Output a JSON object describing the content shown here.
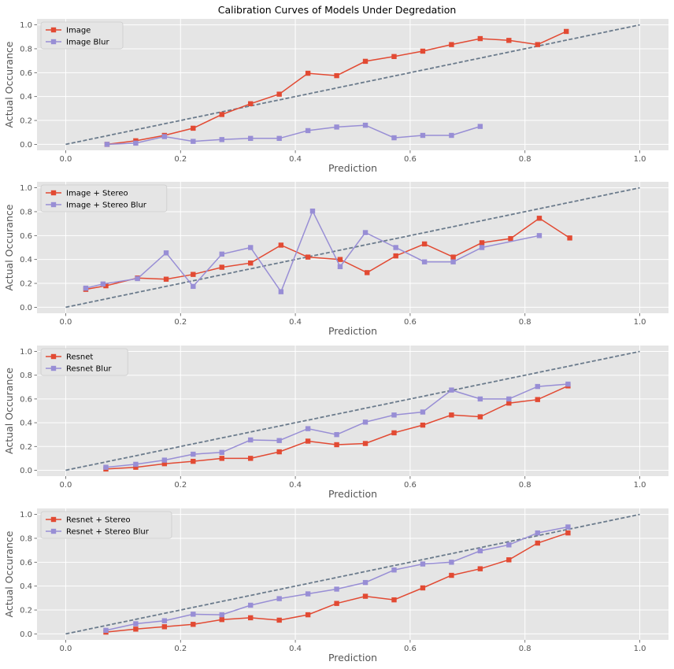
{
  "title": "Calibration Curves of Models Under Degredation",
  "colors": {
    "background": "#E5E5E5",
    "grid": "#FFFFFF",
    "series_a": "#E24A33",
    "series_b": "#988ED5",
    "reference": "#6B7B8C"
  },
  "chart_data": [
    {
      "type": "line",
      "xlabel": "Prediction",
      "ylabel": "Actual Occurance",
      "xlim": [
        -0.05,
        1.05
      ],
      "ylim": [
        -0.05,
        1.05
      ],
      "xticks": [
        "0.0",
        "0.2",
        "0.4",
        "0.6",
        "0.8",
        "1.0"
      ],
      "yticks": [
        "0.0",
        "0.2",
        "0.4",
        "0.6",
        "0.8",
        "1.0"
      ],
      "grid": true,
      "legend_position": "upper-left",
      "reference_line": {
        "x": [
          0,
          1
        ],
        "y": [
          0,
          1
        ]
      },
      "series": [
        {
          "name": "Image",
          "x": [
            0.072,
            0.122,
            0.172,
            0.222,
            0.272,
            0.322,
            0.372,
            0.422,
            0.472,
            0.522,
            0.572,
            0.622,
            0.672,
            0.722,
            0.772,
            0.822,
            0.872
          ],
          "y": [
            0.0,
            0.03,
            0.075,
            0.135,
            0.25,
            0.34,
            0.42,
            0.595,
            0.575,
            0.695,
            0.735,
            0.78,
            0.835,
            0.885,
            0.87,
            0.835,
            0.945
          ]
        },
        {
          "name": "Image Blur",
          "x": [
            0.072,
            0.122,
            0.172,
            0.222,
            0.272,
            0.322,
            0.372,
            0.422,
            0.472,
            0.522,
            0.572,
            0.622,
            0.672,
            0.722
          ],
          "y": [
            0.0,
            0.01,
            0.065,
            0.025,
            0.04,
            0.05,
            0.05,
            0.115,
            0.145,
            0.16,
            0.055,
            0.075,
            0.075,
            0.15
          ]
        }
      ]
    },
    {
      "type": "line",
      "xlabel": "Prediction",
      "ylabel": "Actual Occurance",
      "xlim": [
        -0.05,
        1.05
      ],
      "ylim": [
        -0.05,
        1.05
      ],
      "xticks": [
        "0.0",
        "0.2",
        "0.4",
        "0.6",
        "0.8",
        "1.0"
      ],
      "yticks": [
        "0.0",
        "0.2",
        "0.4",
        "0.6",
        "0.8",
        "1.0"
      ],
      "grid": true,
      "legend_position": "upper-left",
      "reference_line": {
        "x": [
          0,
          1
        ],
        "y": [
          0,
          1
        ]
      },
      "series": [
        {
          "name": "Image + Stereo",
          "x": [
            0.035,
            0.07,
            0.125,
            0.175,
            0.222,
            0.272,
            0.322,
            0.375,
            0.422,
            0.478,
            0.525,
            0.575,
            0.625,
            0.675,
            0.725,
            0.775,
            0.825,
            0.878
          ],
          "y": [
            0.15,
            0.18,
            0.245,
            0.235,
            0.275,
            0.335,
            0.37,
            0.52,
            0.42,
            0.4,
            0.29,
            0.43,
            0.53,
            0.42,
            0.54,
            0.575,
            0.745,
            0.58
          ]
        },
        {
          "name": "Image + Stereo Blur",
          "x": [
            0.035,
            0.065,
            0.125,
            0.175,
            0.222,
            0.272,
            0.322,
            0.375,
            0.43,
            0.478,
            0.522,
            0.575,
            0.625,
            0.675,
            0.725,
            0.825
          ],
          "y": [
            0.16,
            0.195,
            0.24,
            0.455,
            0.175,
            0.445,
            0.5,
            0.13,
            0.805,
            0.34,
            0.625,
            0.5,
            0.38,
            0.38,
            0.5,
            0.6
          ]
        }
      ]
    },
    {
      "type": "line",
      "xlabel": "Prediction",
      "ylabel": "Actual Occurance",
      "xlim": [
        -0.05,
        1.05
      ],
      "ylim": [
        -0.05,
        1.05
      ],
      "xticks": [
        "0.0",
        "0.2",
        "0.4",
        "0.6",
        "0.8",
        "1.0"
      ],
      "yticks": [
        "0.0",
        "0.2",
        "0.4",
        "0.6",
        "0.8",
        "1.0"
      ],
      "grid": true,
      "legend_position": "upper-left",
      "reference_line": {
        "x": [
          0,
          1
        ],
        "y": [
          0,
          1
        ]
      },
      "series": [
        {
          "name": "Resnet",
          "x": [
            0.07,
            0.122,
            0.172,
            0.222,
            0.272,
            0.322,
            0.372,
            0.422,
            0.472,
            0.522,
            0.572,
            0.622,
            0.672,
            0.722,
            0.772,
            0.822,
            0.875
          ],
          "y": [
            0.01,
            0.025,
            0.055,
            0.075,
            0.1,
            0.1,
            0.155,
            0.245,
            0.215,
            0.225,
            0.315,
            0.38,
            0.465,
            0.45,
            0.565,
            0.595,
            0.71
          ]
        },
        {
          "name": "Resnet Blur",
          "x": [
            0.07,
            0.122,
            0.172,
            0.222,
            0.272,
            0.322,
            0.372,
            0.422,
            0.472,
            0.522,
            0.572,
            0.622,
            0.672,
            0.722,
            0.772,
            0.822,
            0.875
          ],
          "y": [
            0.025,
            0.05,
            0.085,
            0.135,
            0.15,
            0.255,
            0.25,
            0.35,
            0.3,
            0.405,
            0.465,
            0.49,
            0.675,
            0.6,
            0.6,
            0.705,
            0.725
          ]
        }
      ]
    },
    {
      "type": "line",
      "xlabel": "Prediction",
      "ylabel": "Actual Occurance",
      "xlim": [
        -0.05,
        1.05
      ],
      "ylim": [
        -0.05,
        1.05
      ],
      "xticks": [
        "0.0",
        "0.2",
        "0.4",
        "0.6",
        "0.8",
        "1.0"
      ],
      "yticks": [
        "0.0",
        "0.2",
        "0.4",
        "0.6",
        "0.8",
        "1.0"
      ],
      "grid": true,
      "legend_position": "upper-left",
      "reference_line": {
        "x": [
          0,
          1
        ],
        "y": [
          0,
          1
        ]
      },
      "series": [
        {
          "name": "Resnet + Stereo",
          "x": [
            0.07,
            0.122,
            0.172,
            0.222,
            0.272,
            0.322,
            0.372,
            0.422,
            0.472,
            0.522,
            0.572,
            0.622,
            0.672,
            0.722,
            0.772,
            0.822,
            0.875
          ],
          "y": [
            0.015,
            0.04,
            0.06,
            0.08,
            0.12,
            0.135,
            0.115,
            0.16,
            0.255,
            0.315,
            0.285,
            0.385,
            0.49,
            0.545,
            0.62,
            0.76,
            0.845
          ]
        },
        {
          "name": "Resnet + Stereo Blur",
          "x": [
            0.07,
            0.122,
            0.172,
            0.222,
            0.272,
            0.322,
            0.372,
            0.422,
            0.472,
            0.522,
            0.572,
            0.622,
            0.672,
            0.722,
            0.772,
            0.822,
            0.875
          ],
          "y": [
            0.03,
            0.085,
            0.11,
            0.165,
            0.16,
            0.24,
            0.295,
            0.335,
            0.375,
            0.43,
            0.535,
            0.585,
            0.6,
            0.695,
            0.745,
            0.845,
            0.895
          ]
        }
      ]
    }
  ]
}
